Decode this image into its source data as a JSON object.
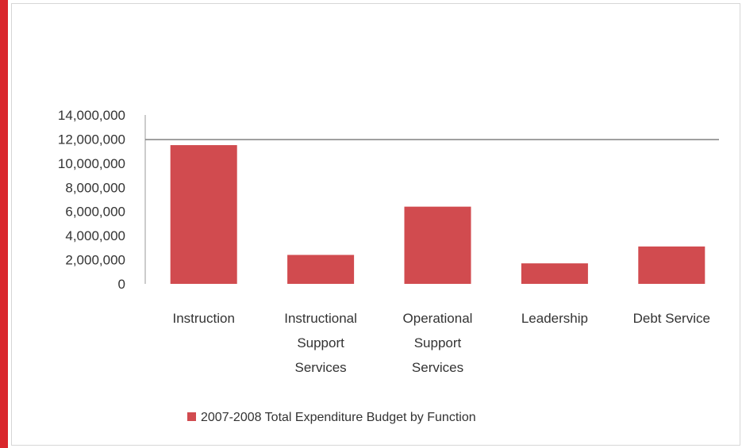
{
  "chart_data": {
    "type": "bar",
    "categories": [
      [
        "Instruction"
      ],
      [
        "Instructional",
        "Support",
        "Services"
      ],
      [
        "Operational",
        "Support",
        "Services"
      ],
      [
        "Leadership"
      ],
      [
        "Debt Service"
      ]
    ],
    "series": [
      {
        "name": "2007-2008 Total Expenditure Budget by Function",
        "color": "#d14b4f",
        "values": [
          11500000,
          2400000,
          6400000,
          1700000,
          3100000
        ]
      }
    ],
    "yticks": [
      "0",
      "2,000,000",
      "4,000,000",
      "6,000,000",
      "8,000,000",
      "10,000,000",
      "12,000,000",
      "14,000,000"
    ],
    "ylim": [
      0,
      14000000
    ],
    "grid": false,
    "legend_position": "bottom"
  }
}
